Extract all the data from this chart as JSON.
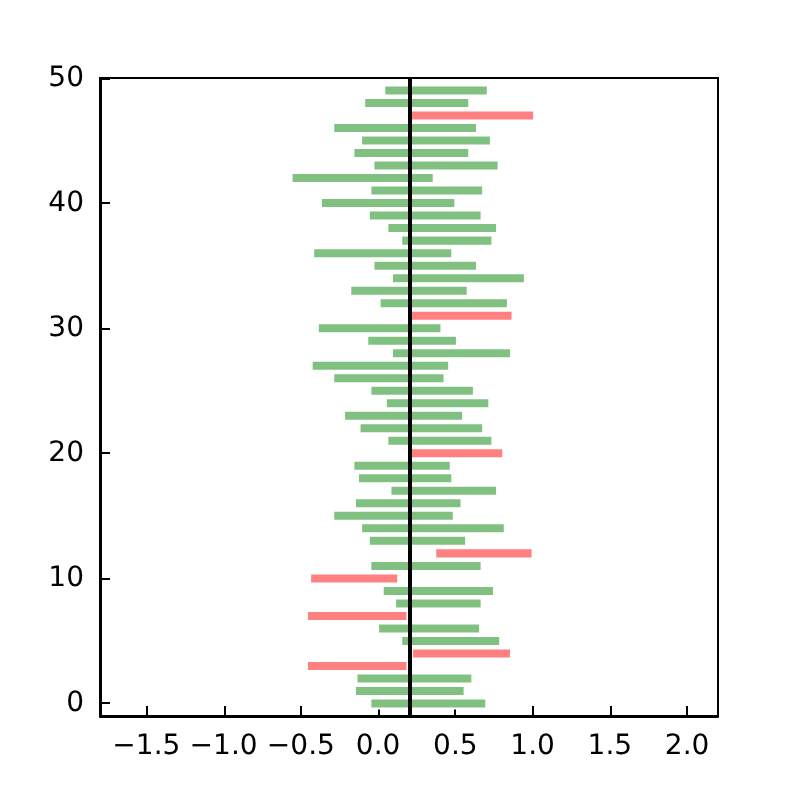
{
  "chart_data": {
    "type": "bar",
    "orientation": "horizontal",
    "x": [
      0,
      1,
      2,
      3,
      4,
      5,
      6,
      7,
      8,
      9,
      10,
      11,
      12,
      13,
      14,
      15,
      16,
      17,
      18,
      19,
      20,
      21,
      22,
      23,
      24,
      25,
      26,
      27,
      28,
      29,
      30,
      31,
      32,
      33,
      34,
      35,
      36,
      37,
      38,
      39,
      40,
      41,
      42,
      43,
      44,
      45,
      46,
      47,
      48,
      49
    ],
    "base": [
      -0.05,
      -0.15,
      -0.14,
      -0.46,
      0.22,
      0.15,
      0.0,
      -0.46,
      0.11,
      0.03,
      -0.44,
      -0.05,
      0.37,
      -0.06,
      -0.11,
      -0.29,
      -0.15,
      0.08,
      -0.13,
      -0.16,
      0.21,
      0.06,
      -0.12,
      -0.22,
      0.05,
      -0.05,
      -0.29,
      -0.43,
      0.09,
      -0.07,
      -0.39,
      0.21,
      0.01,
      -0.18,
      0.09,
      -0.03,
      -0.42,
      0.15,
      0.06,
      -0.06,
      -0.37,
      -0.05,
      -0.56,
      -0.03,
      -0.16,
      -0.11,
      -0.29,
      0.21,
      -0.09,
      0.04
    ],
    "values": [
      0.75,
      0.71,
      0.75,
      0.65,
      0.64,
      0.64,
      0.66,
      0.65,
      0.56,
      0.72,
      0.57,
      0.72,
      0.63,
      0.63,
      0.93,
      0.78,
      0.69,
      0.69,
      0.61,
      0.63,
      0.6,
      0.68,
      0.8,
      0.77,
      0.67,
      0.67,
      0.72,
      0.89,
      0.77,
      0.58,
      0.8,
      0.66,
      0.83,
      0.76,
      0.86,
      0.67,
      0.9,
      0.59,
      0.71,
      0.73,
      0.87,
      0.73,
      0.92,
      0.81,
      0.75,
      0.84,
      0.93,
      0.8,
      0.68,
      0.67
    ],
    "colors": [
      "#80c080",
      "#80c080",
      "#80c080",
      "#ff8080",
      "#ff8080",
      "#80c080",
      "#80c080",
      "#ff8080",
      "#80c080",
      "#80c080",
      "#ff8080",
      "#80c080",
      "#ff8080",
      "#80c080",
      "#80c080",
      "#80c080",
      "#80c080",
      "#80c080",
      "#80c080",
      "#80c080",
      "#ff8080",
      "#80c080",
      "#80c080",
      "#80c080",
      "#80c080",
      "#80c080",
      "#80c080",
      "#80c080",
      "#80c080",
      "#80c080",
      "#80c080",
      "#ff8080",
      "#80c080",
      "#80c080",
      "#80c080",
      "#80c080",
      "#80c080",
      "#80c080",
      "#80c080",
      "#80c080",
      "#80c080",
      "#80c080",
      "#80c080",
      "#80c080",
      "#80c080",
      "#80c080",
      "#80c080",
      "#ff8080",
      "#80c080",
      "#80c080"
    ],
    "xlim": [
      -1.8,
      2.2
    ],
    "xticks": [
      {
        "value": -1.5,
        "label": "−1.5"
      },
      {
        "value": -1.0,
        "label": "−1.0"
      },
      {
        "value": -0.5,
        "label": "−0.5"
      },
      {
        "value": 0,
        "label": "0.0"
      },
      {
        "value": 0.5,
        "label": "0.5"
      },
      {
        "value": 1.0,
        "label": "1.0"
      },
      {
        "value": 1.5,
        "label": "1.5"
      },
      {
        "value": 2.0,
        "label": "2.0"
      }
    ],
    "ylim": [
      -1,
      50
    ],
    "yticks": [
      0,
      10,
      20,
      30,
      40,
      50
    ],
    "ref_lines": [
      {
        "axis": "x",
        "value": 0.2,
        "color": "#000000"
      }
    ],
    "grid": false
  }
}
